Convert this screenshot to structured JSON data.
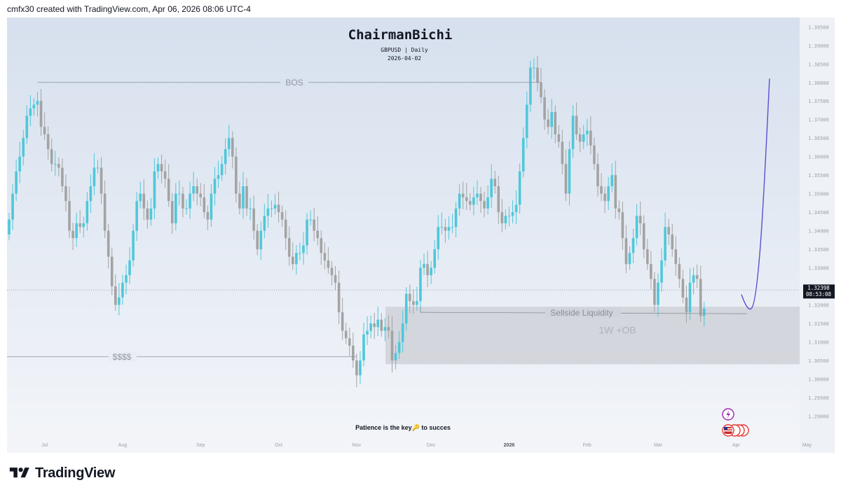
{
  "header": {
    "caption": "cmfx30 created with TradingView.com, Apr 06, 2026 08:06 UTC-4"
  },
  "footer": {
    "brand": "TradingView"
  },
  "colors": {
    "bull": "#4fc7da",
    "bear": "#a3a3a3",
    "zone": "#d0d3d9",
    "projection": "#5b4fcf",
    "price_label_bg": "#131722",
    "line": "#8a8e97",
    "bg_top": "#d6e0ee",
    "bg_bottom": "#f3f5f9"
  },
  "icons": {
    "flash": "lightning-icon",
    "flags": "us-flag-icon",
    "key": "key-icon"
  },
  "chart_data": {
    "type": "candlestick",
    "title": "ChairmanBichi",
    "subtitle": "GBPUSD | Daily",
    "date": "2026-04-02",
    "footer_note": "Patience is the key🔑 to succes",
    "price_label": {
      "price": "1.32398",
      "countdown": "08:53:08",
      "value": 1.32398
    },
    "y_axis": {
      "min": 1.285,
      "max": 1.396,
      "ticks": [
        "1.39500",
        "1.39000",
        "1.38500",
        "1.38000",
        "1.37500",
        "1.37000",
        "1.36500",
        "1.36000",
        "1.35500",
        "1.35000",
        "1.34500",
        "1.34000",
        "1.33500",
        "1.33000",
        "1.32500",
        "1.32000",
        "1.31500",
        "1.31000",
        "1.30500",
        "1.30000",
        "1.29500",
        "1.29000"
      ]
    },
    "x_axis": {
      "labels": [
        "Jul",
        "Aug",
        "Sep",
        "Oct",
        "Nov",
        "Dec",
        "2026",
        "Feb",
        "Mar",
        "Apr",
        "May"
      ],
      "bold": [
        false,
        false,
        false,
        false,
        false,
        false,
        true,
        false,
        false,
        false,
        false
      ],
      "total_days": 220,
      "label_index": [
        10,
        32,
        54,
        76,
        98,
        119,
        141,
        163,
        183,
        205,
        225
      ]
    },
    "series_close": [
      1.343,
      1.35,
      1.356,
      1.36,
      1.365,
      1.371,
      1.373,
      1.374,
      1.375,
      1.368,
      1.366,
      1.362,
      1.358,
      1.358,
      1.357,
      1.352,
      1.348,
      1.34,
      1.338,
      1.342,
      1.341,
      1.342,
      1.348,
      1.352,
      1.357,
      1.357,
      1.35,
      1.34,
      1.333,
      1.325,
      1.32,
      1.322,
      1.326,
      1.328,
      1.332,
      1.34,
      1.348,
      1.35,
      1.346,
      1.343,
      1.346,
      1.356,
      1.358,
      1.356,
      1.354,
      1.348,
      1.342,
      1.35,
      1.35,
      1.346,
      1.346,
      1.35,
      1.352,
      1.35,
      1.349,
      1.345,
      1.343,
      1.35,
      1.354,
      1.355,
      1.358,
      1.362,
      1.365,
      1.36,
      1.35,
      1.346,
      1.352,
      1.346,
      1.346,
      1.34,
      1.335,
      1.34,
      1.344,
      1.346,
      1.346,
      1.347,
      1.345,
      1.343,
      1.338,
      1.333,
      1.331,
      1.334,
      1.334,
      1.336,
      1.343,
      1.343,
      1.34,
      1.338,
      1.334,
      1.332,
      1.33,
      1.328,
      1.326,
      1.318,
      1.313,
      1.311,
      1.309,
      1.305,
      1.301,
      1.305,
      1.312,
      1.313,
      1.315,
      1.314,
      1.316,
      1.313,
      1.314,
      1.313,
      1.305,
      1.307,
      1.31,
      1.315,
      1.323,
      1.321,
      1.32,
      1.321,
      1.33,
      1.331,
      1.328,
      1.33,
      1.335,
      1.341,
      1.341,
      1.34,
      1.341,
      1.341,
      1.346,
      1.35,
      1.349,
      1.348,
      1.347,
      1.349,
      1.35,
      1.348,
      1.346,
      1.349,
      1.354,
      1.352,
      1.345,
      1.342,
      1.344,
      1.344,
      1.345,
      1.347,
      1.356,
      1.365,
      1.374,
      1.384,
      1.384,
      1.38,
      1.376,
      1.37,
      1.368,
      1.372,
      1.366,
      1.364,
      1.358,
      1.35,
      1.362,
      1.371,
      1.366,
      1.364,
      1.366,
      1.367,
      1.363,
      1.358,
      1.352,
      1.35,
      1.348,
      1.352,
      1.355,
      1.346,
      1.345,
      1.338,
      1.331,
      1.334,
      1.338,
      1.344,
      1.342,
      1.335,
      1.331,
      1.327,
      1.32,
      1.326,
      1.332,
      1.341,
      1.339,
      1.335,
      1.331,
      1.327,
      1.322,
      1.318,
      1.326,
      1.328,
      1.327,
      1.317,
      1.319
    ],
    "annotations": [
      {
        "text": "BOS",
        "price": 1.38
      },
      {
        "text": "$$$$",
        "price": 1.306
      },
      {
        "text": "Sellside Liquidity",
        "price": 1.318
      },
      {
        "text": "1W +OB",
        "price": 1.3145
      }
    ],
    "zone": {
      "label": "1W +OB",
      "top": 1.3195,
      "bottom": 1.304
    },
    "projection": {
      "low": 1.319,
      "high": 1.381
    },
    "legend": "none",
    "grid": false
  }
}
